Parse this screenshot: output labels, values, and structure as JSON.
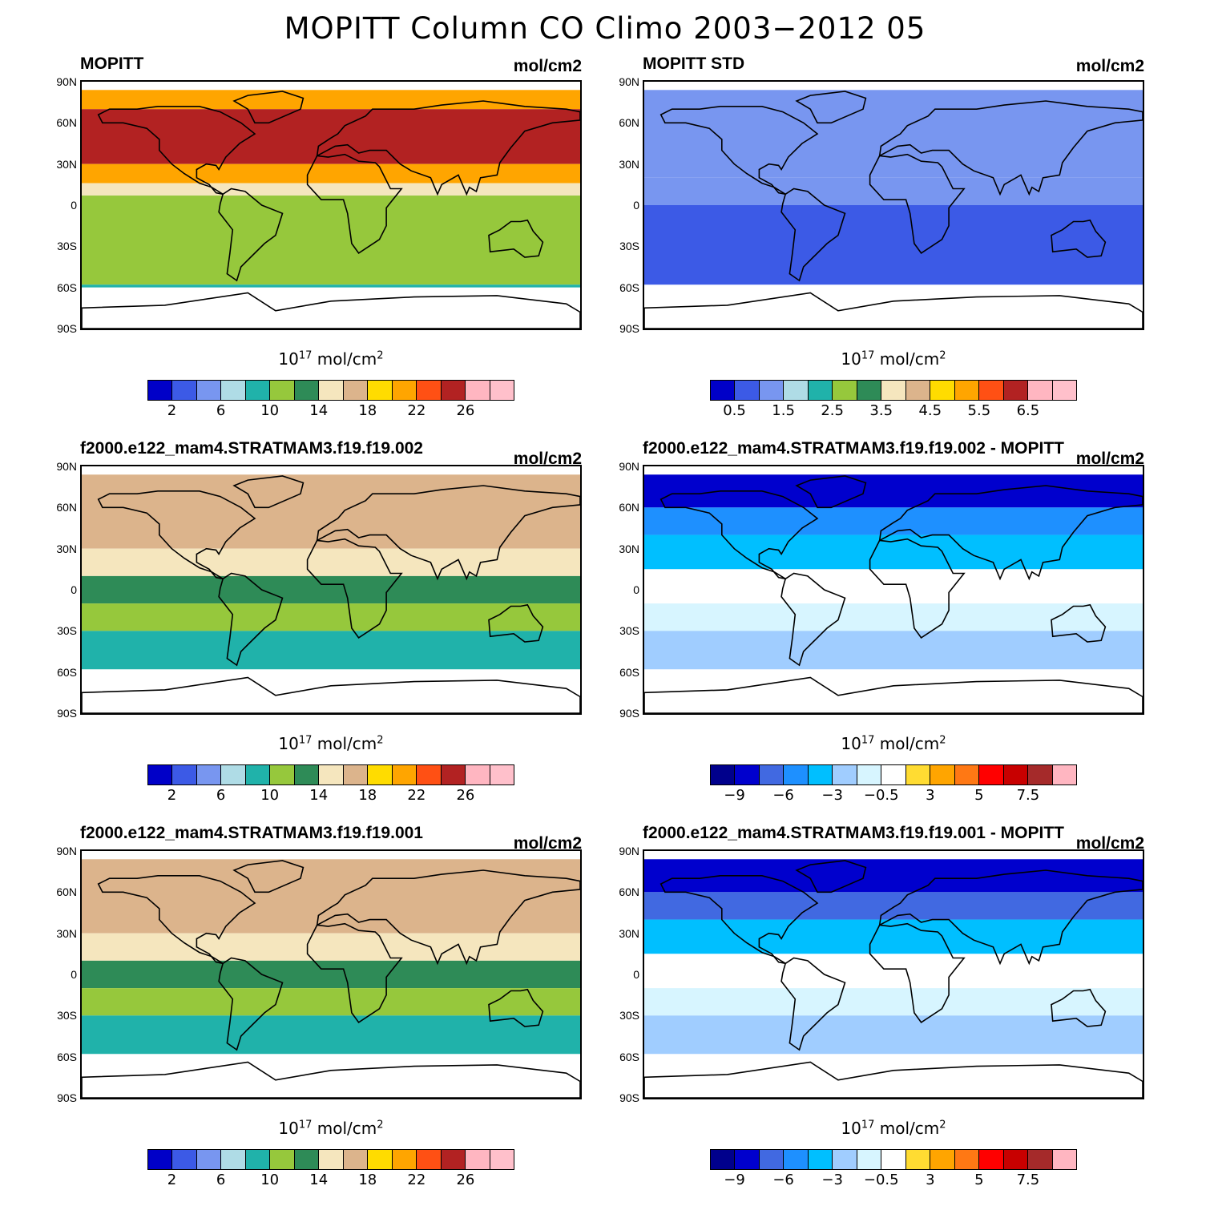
{
  "title": "MOPITT Column CO Climo 2003−2012 05",
  "colors": {
    "abs": [
      "#0000c8",
      "#3c5ae6",
      "#7896f0",
      "#afdce6",
      "#20b2aa",
      "#96c83c",
      "#2e8b57",
      "#f5e6be",
      "#dcb48c",
      "#ffdc00",
      "#ffa500",
      "#ff5014",
      "#b22222",
      "#ffb6c1",
      "#ffc0cb"
    ],
    "diff": [
      "#00008c",
      "#0000cd",
      "#4169e1",
      "#1e90ff",
      "#00bfff",
      "#a0cdff",
      "#d7f5ff",
      "#ffffff",
      "#ffdc32",
      "#ffa500",
      "#ff7814",
      "#ff0000",
      "#c80000",
      "#a52a2a",
      "#ffb6c1"
    ]
  },
  "panels": [
    {
      "title": "MOPITT",
      "units": "mol/cm2",
      "colorbar_label": "10",
      "colorbar_exp": "17",
      "colorbar_unit": "mol/cm",
      "colorbar_unit_exp": "2",
      "scale": "abs",
      "ticks": [
        "2",
        "6",
        "10",
        "14",
        "18",
        "22",
        "26"
      ]
    },
    {
      "title": "MOPITT STD",
      "units": "mol/cm2",
      "colorbar_label": "10",
      "colorbar_exp": "17",
      "colorbar_unit": "mol/cm",
      "colorbar_unit_exp": "2",
      "scale": "abs",
      "ticks": [
        "0.5",
        "1.5",
        "2.5",
        "3.5",
        "4.5",
        "5.5",
        "6.5"
      ]
    },
    {
      "title": "f2000.e122_mam4.STRATMAM3.f19.f19.002",
      "units": "mol/cm2",
      "colorbar_label": "10",
      "colorbar_exp": "17",
      "colorbar_unit": "mol/cm",
      "colorbar_unit_exp": "2",
      "scale": "abs",
      "ticks": [
        "2",
        "6",
        "10",
        "14",
        "18",
        "22",
        "26"
      ]
    },
    {
      "title": "f2000.e122_mam4.STRATMAM3.f19.f19.002 - MOPITT",
      "units": "mol/cm2",
      "colorbar_label": "10",
      "colorbar_exp": "17",
      "colorbar_unit": "mol/cm",
      "colorbar_unit_exp": "2",
      "scale": "diff",
      "ticks": [
        "−9",
        "−6",
        "−3",
        "−0.5",
        "3",
        "5",
        "7.5"
      ]
    },
    {
      "title": "f2000.e122_mam4.STRATMAM3.f19.f19.001",
      "units": "mol/cm2",
      "colorbar_label": "10",
      "colorbar_exp": "17",
      "colorbar_unit": "mol/cm",
      "colorbar_unit_exp": "2",
      "scale": "abs",
      "ticks": [
        "2",
        "6",
        "10",
        "14",
        "18",
        "22",
        "26"
      ]
    },
    {
      "title": "f2000.e122_mam4.STRATMAM3.f19.f19.001 - MOPITT",
      "units": "mol/cm2",
      "colorbar_label": "10",
      "colorbar_exp": "17",
      "colorbar_unit": "mol/cm",
      "colorbar_unit_exp": "2",
      "scale": "diff",
      "ticks": [
        "−9",
        "−6",
        "−3",
        "−0.5",
        "3",
        "5",
        "7.5"
      ]
    }
  ],
  "lat_labels": [
    "90N",
    "60N",
    "30N",
    "0",
    "30S",
    "60S",
    "90S"
  ]
}
